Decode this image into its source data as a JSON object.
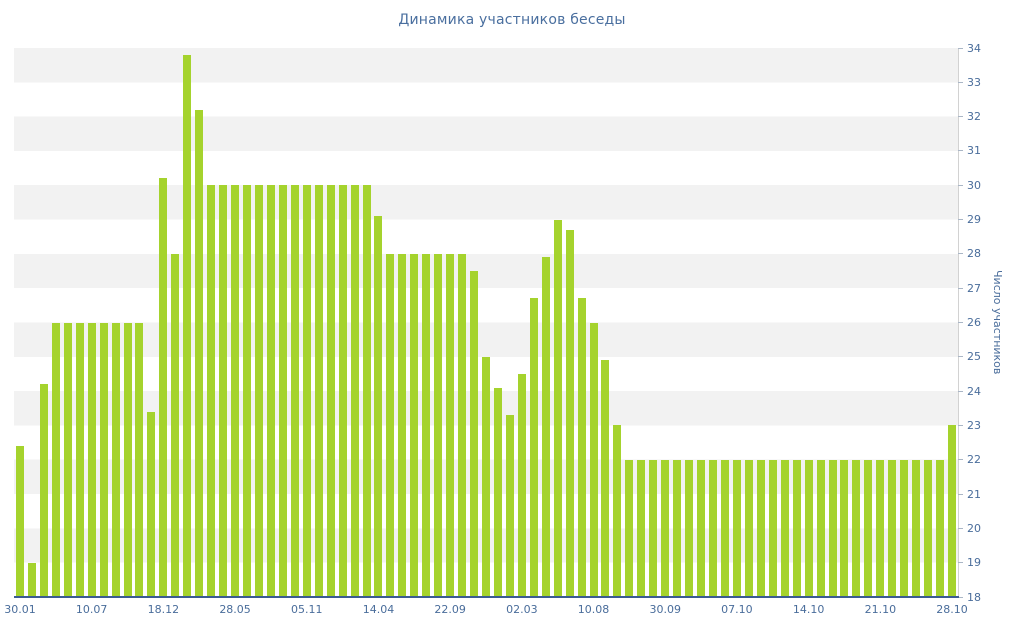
{
  "chart_data": {
    "type": "bar",
    "title": "Динамика участников беседы",
    "ylabel": "Число участников",
    "xlabel": "",
    "ylim": [
      18,
      34
    ],
    "ytick_step": 1,
    "ytick_labels": [
      18,
      19,
      20,
      21,
      22,
      23,
      24,
      25,
      26,
      27,
      28,
      29,
      30,
      31,
      32,
      33,
      34
    ],
    "x_tick_labels": [
      "30.01",
      "10.07",
      "18.12",
      "28.05",
      "05.11",
      "14.04",
      "22.09",
      "02.03",
      "10.08",
      "30.09",
      "07.10",
      "14.10",
      "21.10",
      "28.10"
    ],
    "x_tick_every": 6,
    "values": [
      22.4,
      19,
      24.2,
      26,
      26,
      26,
      26,
      26,
      26,
      26,
      26,
      23.4,
      30.2,
      28,
      33.8,
      32.2,
      30,
      30,
      30,
      30,
      30,
      30,
      30,
      30,
      30,
      30,
      30,
      30,
      30,
      30,
      29.1,
      28,
      28,
      28,
      28,
      28,
      28,
      28,
      27.5,
      25,
      24.1,
      23.3,
      24.5,
      26.7,
      27.9,
      29,
      28.7,
      26.7,
      26,
      24.9,
      23,
      22,
      22,
      22,
      22,
      22,
      22,
      22,
      22,
      22,
      22,
      22,
      22,
      22,
      22,
      22,
      22,
      22,
      22,
      22,
      22,
      22,
      22,
      22,
      22,
      22,
      22,
      22,
      23
    ],
    "grid": "horizontal-stripes",
    "legend": "none",
    "colors": {
      "bar": "#a5d32d",
      "title_text": "#4a6f9f",
      "axis_text": "#4a6d9b",
      "stripe": "#f2f2f2",
      "stripe_alt": "#ffffff",
      "baseline": "#3b5c92",
      "axis_line": "#d2d2d2",
      "tick_mark": "#aab6c6"
    }
  }
}
